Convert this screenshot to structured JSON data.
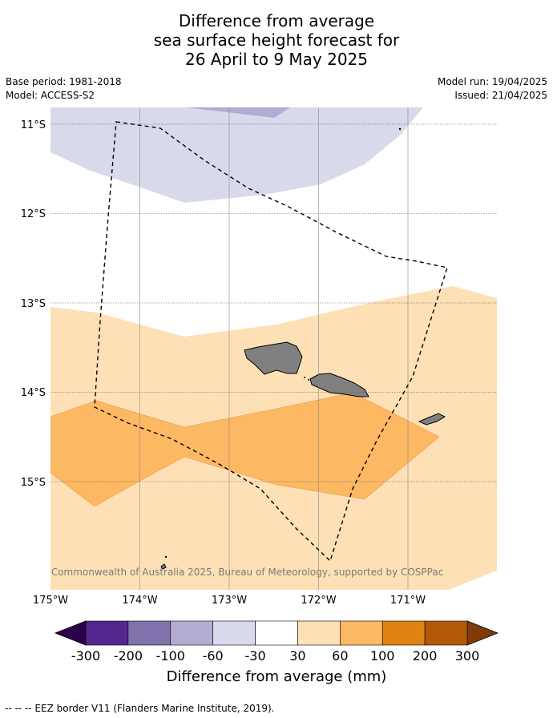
{
  "title": {
    "line1": "Difference from average",
    "line2": "sea surface height forecast for",
    "line3": "26 April to 9 May 2025"
  },
  "meta": {
    "base_period": "Base period: 1981-2018",
    "model": "Model: ACCESS-S2",
    "model_run": "Model run: 19/04/2025",
    "issued": "Issued: 21/04/2025"
  },
  "map": {
    "lat_labels": [
      "11°S",
      "12°S",
      "13°S",
      "14°S",
      "15°S"
    ],
    "lon_labels": [
      "175°W",
      "174°W",
      "173°W",
      "172°W",
      "171°W"
    ],
    "copyright": "© Commonwealth of Australia 2025, Bureau of Meteorology, supported by COSPPac",
    "land_color": "#808080"
  },
  "colorbar": {
    "title": "Difference from average (mm)",
    "ticks": [
      "-300",
      "-200",
      "-100",
      "-60",
      "-30",
      "30",
      "60",
      "100",
      "200",
      "300"
    ],
    "colors": [
      "#54278f",
      "#8073ac",
      "#b2abd2",
      "#d8daeb",
      "#ffffff",
      "#fee0b6",
      "#fdb863",
      "#e08214",
      "#b35806"
    ],
    "under_color": "#2d004b",
    "over_color": "#7f3b08"
  },
  "legend": {
    "eez": "--  --  -- EEZ border V11 (Flanders Marine Institute, 2019)."
  }
}
